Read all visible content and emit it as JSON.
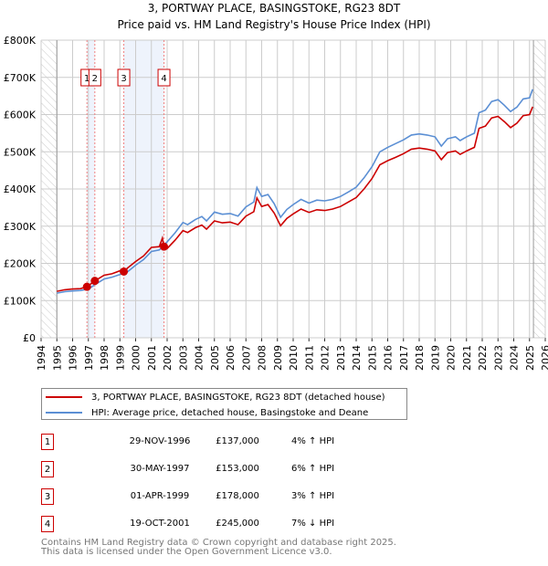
{
  "chart_data": {
    "type": "line",
    "title": "3, PORTWAY PLACE, BASINGSTOKE, RG23 8DT",
    "subtitle": "Price paid vs. HM Land Registry's House Price Index (HPI)",
    "xlabel": "",
    "ylabel": "",
    "xlim": [
      1994,
      2026
    ],
    "ylim": [
      0,
      800000
    ],
    "grid": true,
    "x_ticks": [
      "1994",
      "1995",
      "1996",
      "1997",
      "1998",
      "1999",
      "2000",
      "2001",
      "2002",
      "2003",
      "2004",
      "2005",
      "2006",
      "2007",
      "2008",
      "2009",
      "2010",
      "2011",
      "2012",
      "2013",
      "2014",
      "2015",
      "2016",
      "2017",
      "2018",
      "2019",
      "2020",
      "2021",
      "2022",
      "2023",
      "2024",
      "2025",
      "2026"
    ],
    "y_ticks": [
      {
        "value": 0,
        "label": "£0"
      },
      {
        "value": 100000,
        "label": "£100K"
      },
      {
        "value": 200000,
        "label": "£200K"
      },
      {
        "value": 300000,
        "label": "£300K"
      },
      {
        "value": 400000,
        "label": "£400K"
      },
      {
        "value": 500000,
        "label": "£500K"
      },
      {
        "value": 600000,
        "label": "£600K"
      },
      {
        "value": 700000,
        "label": "£700K"
      },
      {
        "value": 800000,
        "label": "£800K"
      }
    ],
    "data_range": [
      1995.0,
      2025.25
    ],
    "shaded_periods": [
      [
        1996.91,
        1997.41
      ],
      [
        1999.25,
        2001.8
      ]
    ],
    "series": [
      {
        "name": "3, PORTWAY PLACE, BASINGSTOKE, RG23 8DT (detached house)",
        "color": "#cc0000",
        "x": [
          1995.0,
          1995.5,
          1996.0,
          1996.5,
          1996.91,
          1997.41,
          1998.0,
          1998.5,
          1999.0,
          1999.25,
          1999.5,
          2000.0,
          2000.5,
          2001.0,
          2001.5,
          2001.7,
          2001.8,
          2002.0,
          2002.5,
          2003.0,
          2003.3,
          2003.8,
          2004.2,
          2004.5,
          2005.0,
          2005.5,
          2006.0,
          2006.5,
          2007.0,
          2007.5,
          2007.7,
          2008.0,
          2008.4,
          2008.8,
          2009.2,
          2009.6,
          2010.0,
          2010.5,
          2011.0,
          2011.5,
          2012.0,
          2012.5,
          2013.0,
          2013.5,
          2014.0,
          2014.5,
          2015.0,
          2015.5,
          2016.0,
          2016.5,
          2017.0,
          2017.5,
          2018.0,
          2018.5,
          2019.0,
          2019.4,
          2019.8,
          2020.3,
          2020.6,
          2021.0,
          2021.5,
          2021.8,
          2022.2,
          2022.6,
          2023.0,
          2023.4,
          2023.8,
          2024.2,
          2024.6,
          2025.0,
          2025.2
        ],
        "values": [
          125,
          129,
          131,
          132,
          137,
          153,
          168,
          172,
          180,
          178,
          188,
          205,
          220,
          243,
          245,
          268,
          245,
          240,
          262,
          288,
          283,
          296,
          303,
          292,
          314,
          309,
          311,
          304,
          327,
          339,
          376,
          353,
          358,
          335,
          301,
          321,
          333,
          346,
          337,
          344,
          342,
          346,
          353,
          365,
          377,
          400,
          428,
          465,
          476,
          485,
          495,
          507,
          510,
          507,
          502,
          479,
          498,
          502,
          493,
          502,
          512,
          563,
          569,
          591,
          595,
          581,
          565,
          577,
          597,
          600,
          621
        ],
        "unit": "£K"
      },
      {
        "name": "HPI: Average price, detached house, Basingstoke and Deane",
        "color": "#5b8fd4",
        "x": [
          1995.0,
          1995.5,
          1996.0,
          1996.5,
          1997.0,
          1997.5,
          1998.0,
          1998.5,
          1999.0,
          1999.5,
          2000.0,
          2000.5,
          2001.0,
          2001.5,
          2002.0,
          2002.5,
          2003.0,
          2003.3,
          2003.8,
          2004.2,
          2004.5,
          2005.0,
          2005.5,
          2006.0,
          2006.5,
          2007.0,
          2007.5,
          2007.7,
          2008.0,
          2008.4,
          2008.8,
          2009.2,
          2009.6,
          2010.0,
          2010.5,
          2011.0,
          2011.5,
          2012.0,
          2012.5,
          2013.0,
          2013.5,
          2014.0,
          2014.5,
          2015.0,
          2015.5,
          2016.0,
          2016.5,
          2017.0,
          2017.5,
          2018.0,
          2018.5,
          2019.0,
          2019.4,
          2019.8,
          2020.3,
          2020.6,
          2021.0,
          2021.5,
          2021.8,
          2022.2,
          2022.6,
          2023.0,
          2023.4,
          2023.8,
          2024.2,
          2024.6,
          2025.0,
          2025.2
        ],
        "values": [
          120,
          124,
          126,
          127,
          131,
          145,
          158,
          163,
          170,
          178,
          195,
          210,
          232,
          236,
          258,
          282,
          310,
          304,
          318,
          326,
          314,
          338,
          332,
          334,
          327,
          352,
          365,
          404,
          380,
          385,
          360,
          324,
          345,
          358,
          372,
          362,
          370,
          368,
          372,
          380,
          392,
          405,
          430,
          460,
          500,
          512,
          522,
          532,
          545,
          548,
          545,
          540,
          515,
          535,
          540,
          530,
          540,
          550,
          605,
          612,
          635,
          640,
          625,
          608,
          620,
          642,
          645,
          668
        ],
        "unit": "£K"
      }
    ],
    "sales": [
      {
        "num": "1",
        "x": 1996.91,
        "value": 137
      },
      {
        "num": "2",
        "x": 1997.41,
        "value": 153
      },
      {
        "num": "3",
        "x": 1999.25,
        "value": 178
      },
      {
        "num": "4",
        "x": 2001.8,
        "value": 245
      }
    ],
    "legend_position": "below"
  },
  "legend": {
    "red": "3, PORTWAY PLACE, BASINGSTOKE, RG23 8DT (detached house)",
    "blue": "HPI: Average price, detached house, Basingstoke and Deane"
  },
  "transactions": [
    {
      "num": "1",
      "date": "29-NOV-1996",
      "price": "£137,000",
      "hpi": "4% ↑ HPI"
    },
    {
      "num": "2",
      "date": "30-MAY-1997",
      "price": "£153,000",
      "hpi": "6% ↑ HPI"
    },
    {
      "num": "3",
      "date": "01-APR-1999",
      "price": "£178,000",
      "hpi": "3% ↑ HPI"
    },
    {
      "num": "4",
      "date": "19-OCT-2001",
      "price": "£245,000",
      "hpi": "7% ↓ HPI"
    }
  ],
  "footer": {
    "line1": "Contains HM Land Registry data © Crown copyright and database right 2025.",
    "line2": "This data is licensed under the Open Government Licence v3.0."
  }
}
